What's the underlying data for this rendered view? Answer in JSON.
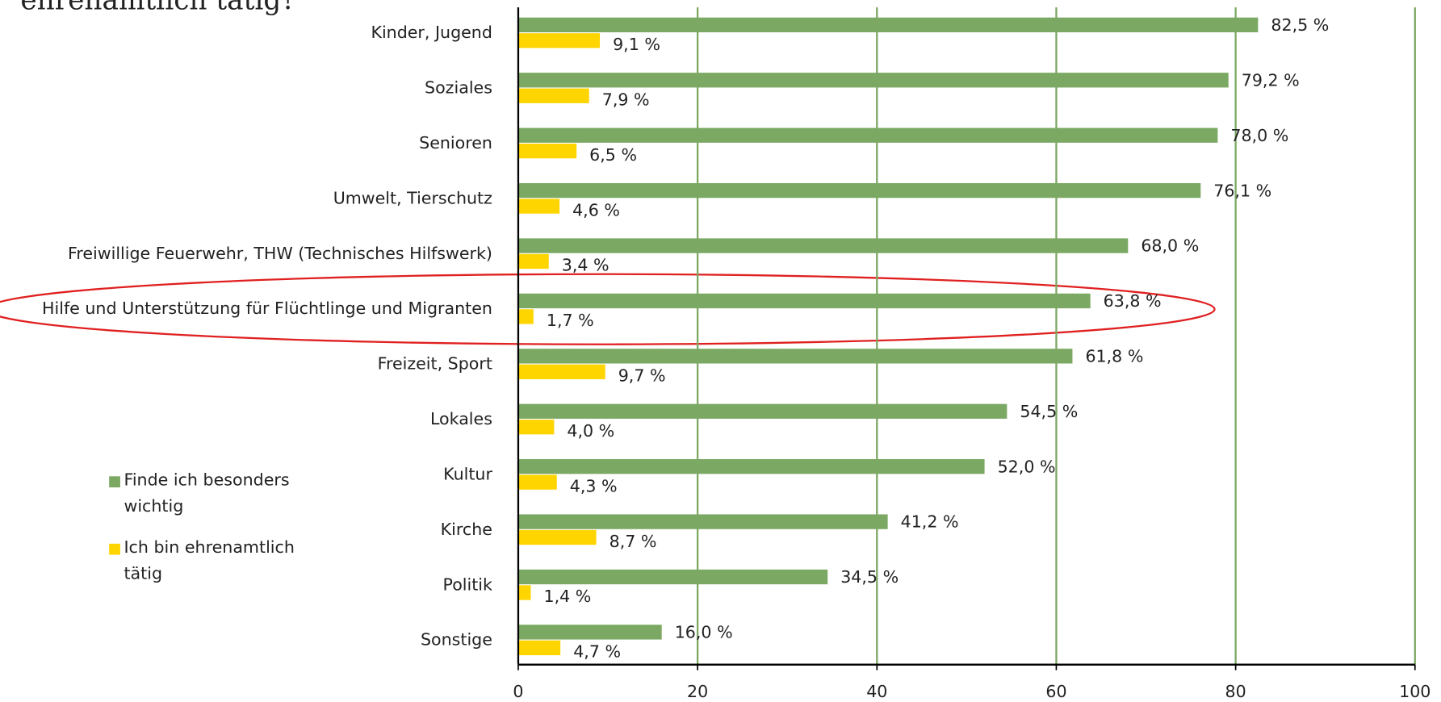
{
  "chart_data": {
    "type": "bar",
    "orientation": "horizontal",
    "title": "ehrenamtlich tätig?",
    "categories": [
      "Kinder, Jugend",
      "Soziales",
      "Senioren",
      "Umwelt, Tierschutz",
      "Freiwillige Feuerwehr, THW (Technisches Hilfswerk)",
      "Hilfe und Unterstützung für Flüchtlinge und Migranten",
      "Freizeit, Sport",
      "Lokales",
      "Kultur",
      "Kirche",
      "Politik",
      "Sonstige"
    ],
    "series": [
      {
        "name": "Finde ich besonders wichtig",
        "color": "#7ba862",
        "values": [
          82.5,
          79.2,
          78.0,
          76.1,
          68.0,
          63.8,
          61.8,
          54.5,
          52.0,
          41.2,
          34.5,
          16.0
        ],
        "value_labels": [
          "82,5 %",
          "79,2 %",
          "78,0 %",
          "76,1 %",
          "68,0 %",
          "63,8 %",
          "61,8 %",
          "54,5 %",
          "52,0 %",
          "41,2 %",
          "34,5 %",
          "16,0 %"
        ]
      },
      {
        "name": "Ich bin ehrenamtlich tätig",
        "color": "#ffd500",
        "values": [
          9.1,
          7.9,
          6.5,
          4.6,
          3.4,
          1.7,
          9.7,
          4.0,
          4.3,
          8.7,
          1.4,
          4.7
        ],
        "value_labels": [
          "9,1 %",
          "7,9 %",
          "6,5 %",
          "4,6 %",
          "3,4 %",
          "1,7 %",
          "9,7 %",
          "4,0 %",
          "4,3 %",
          "8,7 %",
          "1,4 %",
          "4,7 %"
        ]
      }
    ],
    "xlim": [
      0,
      100
    ],
    "xticks": [
      0,
      20,
      40,
      60,
      80,
      100
    ],
    "grid": true,
    "grid_color": "#7ba862",
    "legend": "left"
  }
}
